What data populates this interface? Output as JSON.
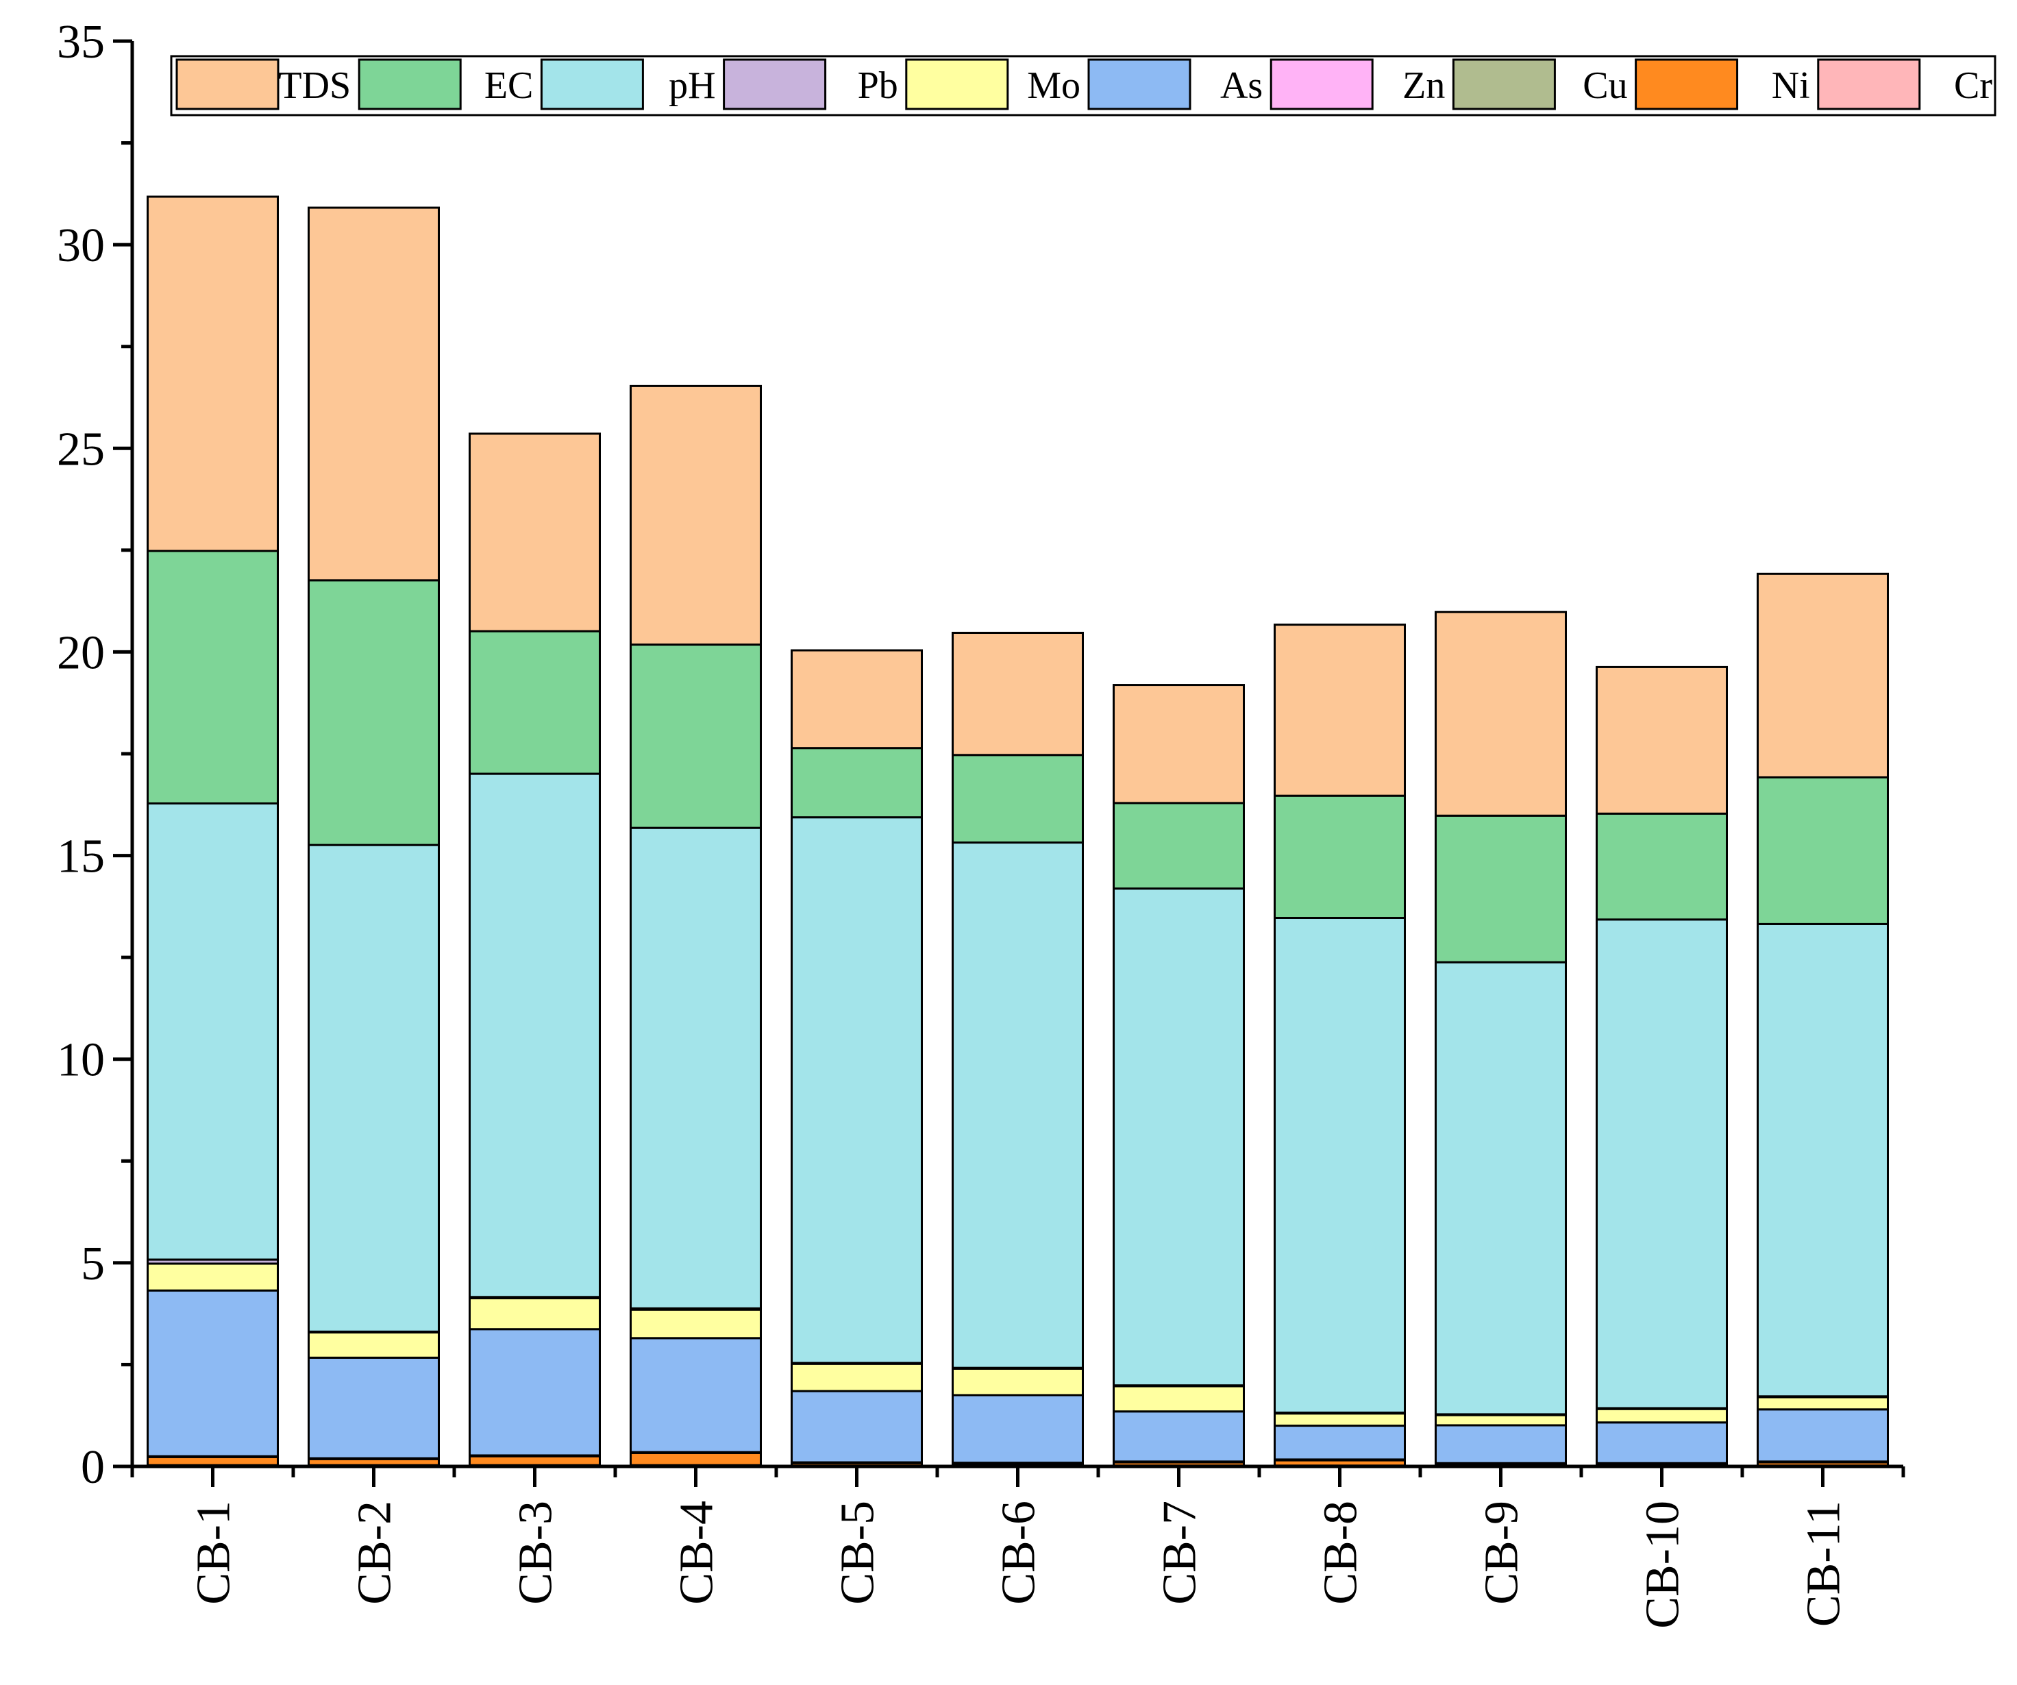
{
  "chart_data": {
    "type": "bar",
    "stacked": true,
    "title": "",
    "xlabel": "",
    "ylabel": "",
    "ylim": [
      0,
      35
    ],
    "yticks": [
      0,
      5,
      10,
      15,
      20,
      25,
      30,
      35
    ],
    "legend_position": "top",
    "categories": [
      "CB-1",
      "CB-2",
      "CB-3",
      "CB-4",
      "CB-5",
      "CB-6",
      "CB-7",
      "CB-8",
      "CB-9",
      "CB-10",
      "CB-11"
    ],
    "series": [
      {
        "name": "Cr",
        "color": "#FFB6B9",
        "values": [
          0.03,
          0.03,
          0.03,
          0.03,
          0.02,
          0.02,
          0.02,
          0.02,
          0.02,
          0.02,
          0.02
        ]
      },
      {
        "name": "Ni",
        "color": "#FF8A1F",
        "values": [
          0.2,
          0.15,
          0.22,
          0.3,
          0.06,
          0.05,
          0.08,
          0.13,
          0.04,
          0.04,
          0.08
        ]
      },
      {
        "name": "Cu",
        "color": "#B0BC8F",
        "values": [
          0.01,
          0.01,
          0.01,
          0.01,
          0.01,
          0.01,
          0.01,
          0.01,
          0.01,
          0.01,
          0.01
        ]
      },
      {
        "name": "Zn",
        "color": "#FFB3F6",
        "values": [
          0.01,
          0.01,
          0.01,
          0.01,
          0.01,
          0.01,
          0.01,
          0.01,
          0.01,
          0.01,
          0.01
        ]
      },
      {
        "name": "As",
        "color": "#8DBAF3",
        "values": [
          4.07,
          2.47,
          3.1,
          2.8,
          1.75,
          1.66,
          1.23,
          0.83,
          0.93,
          1.0,
          1.28
        ]
      },
      {
        "name": "Mo",
        "color": "#FFFFA0",
        "values": [
          0.66,
          0.62,
          0.76,
          0.7,
          0.67,
          0.65,
          0.62,
          0.3,
          0.25,
          0.33,
          0.3
        ]
      },
      {
        "name": "Pb",
        "color": "#C8B3DC",
        "values": [
          0.1,
          0.02,
          0.03,
          0.03,
          0.02,
          0.02,
          0.02,
          0.02,
          0.02,
          0.02,
          0.02
        ]
      },
      {
        "name": "pH",
        "color": "#A3E4EA",
        "values": [
          11.2,
          11.95,
          12.85,
          11.8,
          13.4,
          12.9,
          12.2,
          12.15,
          11.1,
          12.0,
          11.6
        ]
      },
      {
        "name": "EC",
        "color": "#7ED597",
        "values": [
          6.2,
          6.5,
          3.5,
          4.5,
          1.7,
          2.15,
          2.1,
          3.0,
          3.6,
          2.6,
          3.6
        ]
      },
      {
        "name": "TDS",
        "color": "#FDC796",
        "values": [
          8.7,
          9.15,
          4.85,
          6.35,
          2.4,
          3.0,
          2.9,
          4.2,
          5.0,
          3.6,
          5.0
        ]
      }
    ],
    "legend_order": [
      "TDS",
      "EC",
      "pH",
      "Pb",
      "Mo",
      "As",
      "Zn",
      "Cu",
      "Ni",
      "Cr"
    ]
  }
}
